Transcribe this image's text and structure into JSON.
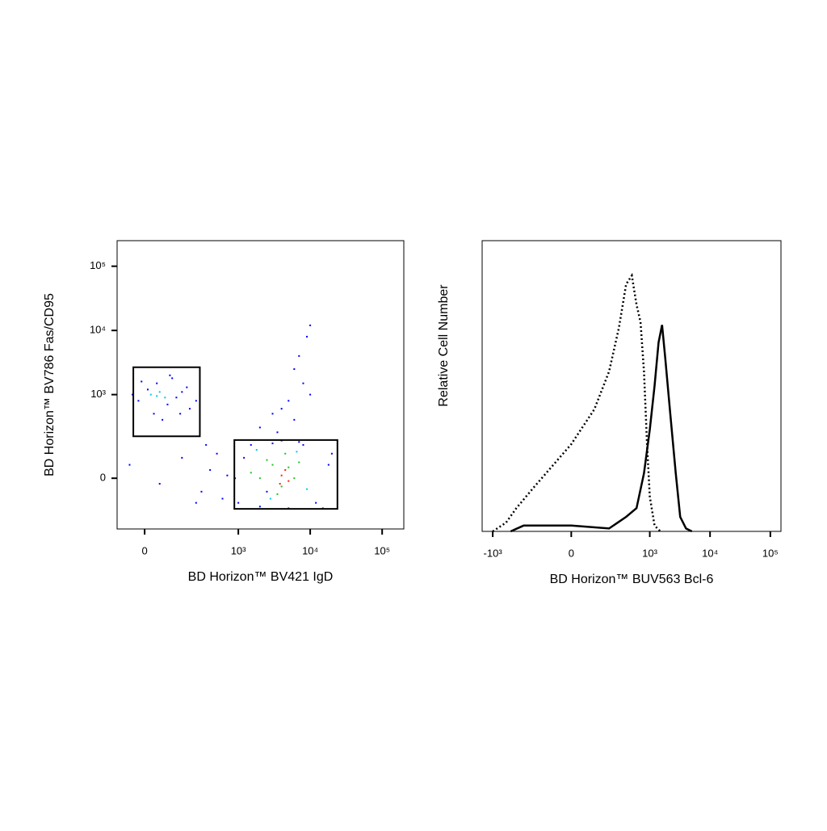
{
  "chart_data": [
    {
      "type": "scatter",
      "x_label": "BD Horizon™ BV421 IgD",
      "y_label": "BD Horizon™ BV786 Fas/CD95",
      "xscale": "biexponential",
      "yscale": "biexponential",
      "xlim": [
        -100,
        200000
      ],
      "ylim": [
        -300,
        250000
      ],
      "xticks": [
        {
          "value": 0,
          "label": "0"
        },
        {
          "value": 1000,
          "label": "10³"
        },
        {
          "value": 10000,
          "label": "10⁴"
        },
        {
          "value": 100000,
          "label": "10⁵"
        }
      ],
      "yticks": [
        {
          "value": 0,
          "label": "0"
        },
        {
          "value": 1000,
          "label": "10³"
        },
        {
          "value": 10000,
          "label": "10⁴"
        },
        {
          "value": 100000,
          "label": "10⁵"
        }
      ],
      "point_groups": [
        {
          "color": "#0000ff",
          "x": [
            -20,
            10,
            40,
            80,
            120,
            150,
            200,
            -40,
            60,
            100,
            30,
            180,
            -10,
            250,
            90,
            140,
            -50,
            50,
            150,
            300,
            400,
            500,
            600,
            700,
            350,
            250,
            1000,
            1500,
            2000,
            3000,
            5000,
            8000,
            12000,
            18000,
            900,
            20000,
            15000,
            7000,
            1200,
            2500,
            4000,
            2000,
            3000,
            5000,
            8000,
            6000,
            7000,
            9000,
            10000,
            4000,
            10000,
            3500,
            6000
          ],
          "values": [
            800,
            1200,
            1500,
            700,
            900,
            1100,
            600,
            1000,
            400,
            1800,
            500,
            1300,
            1600,
            800,
            2000,
            500,
            50,
            -20,
            80,
            -50,
            30,
            100,
            -80,
            10,
            150,
            -100,
            -100,
            150,
            -120,
            160,
            -130,
            150,
            -100,
            50,
            0,
            100,
            -130,
            170,
            80,
            -50,
            180,
            300,
            500,
            800,
            1500,
            2500,
            4000,
            8000,
            12000,
            600,
            1000,
            250,
            400
          ]
        },
        {
          "color": "#00c8e8",
          "x": [
            20,
            50,
            70,
            40,
            1800,
            2800,
            6500,
            9000
          ],
          "values": [
            1000,
            1100,
            900,
            950,
            120,
            -80,
            110,
            -40
          ]
        },
        {
          "color": "#20c020",
          "x": [
            2000,
            3000,
            4000,
            5000,
            6000,
            3500,
            2500,
            7000,
            4500,
            1500
          ],
          "values": [
            0,
            50,
            -30,
            40,
            0,
            -60,
            70,
            60,
            100,
            20
          ]
        },
        {
          "color": "#ff2000",
          "x": [
            4000,
            5000,
            4500,
            3800
          ],
          "values": [
            10,
            -10,
            30,
            -20
          ]
        }
      ],
      "gates": [
        {
          "x": [
            -37,
            284,
            284,
            -37
          ],
          "values": [
            2670,
            2670,
            214,
            214
          ]
        },
        {
          "x": [
            880,
            23900,
            23900,
            880
          ],
          "values": [
            184,
            184,
            -133,
            -133
          ]
        }
      ]
    },
    {
      "type": "line",
      "x_label": "BD Horizon™ BUV563 Bcl-6",
      "y_label": "Relative Cell Number",
      "xscale": "biexponential",
      "xlim": [
        -1500,
        150000
      ],
      "ylim": [
        0,
        100
      ],
      "xticks": [
        {
          "value": -1000,
          "label": "-10³"
        },
        {
          "value": 0,
          "label": "0"
        },
        {
          "value": 1000,
          "label": "10³"
        },
        {
          "value": 10000,
          "label": "10⁴"
        },
        {
          "value": 100000,
          "label": "10⁵"
        }
      ],
      "series": [
        {
          "color": "#000000",
          "style": "dotted",
          "x": [
            -1000,
            -600,
            -400,
            -200,
            0,
            100,
            200,
            300,
            400,
            500,
            600,
            700,
            800,
            900,
            1000,
            1200,
            1500
          ],
          "values": [
            0,
            3,
            8,
            15,
            30,
            42,
            55,
            70,
            85,
            88,
            78,
            72,
            55,
            30,
            12,
            2,
            0
          ]
        },
        {
          "color": "#000000",
          "style": "solid",
          "x": [
            -500,
            -300,
            0,
            200,
            400,
            600,
            800,
            1000,
            1200,
            1400,
            1600,
            1800,
            2200,
            2700,
            3200,
            4000,
            5000
          ],
          "values": [
            0,
            2,
            2,
            1,
            5,
            8,
            20,
            35,
            50,
            65,
            71,
            60,
            40,
            20,
            5,
            1,
            0
          ]
        }
      ]
    }
  ]
}
